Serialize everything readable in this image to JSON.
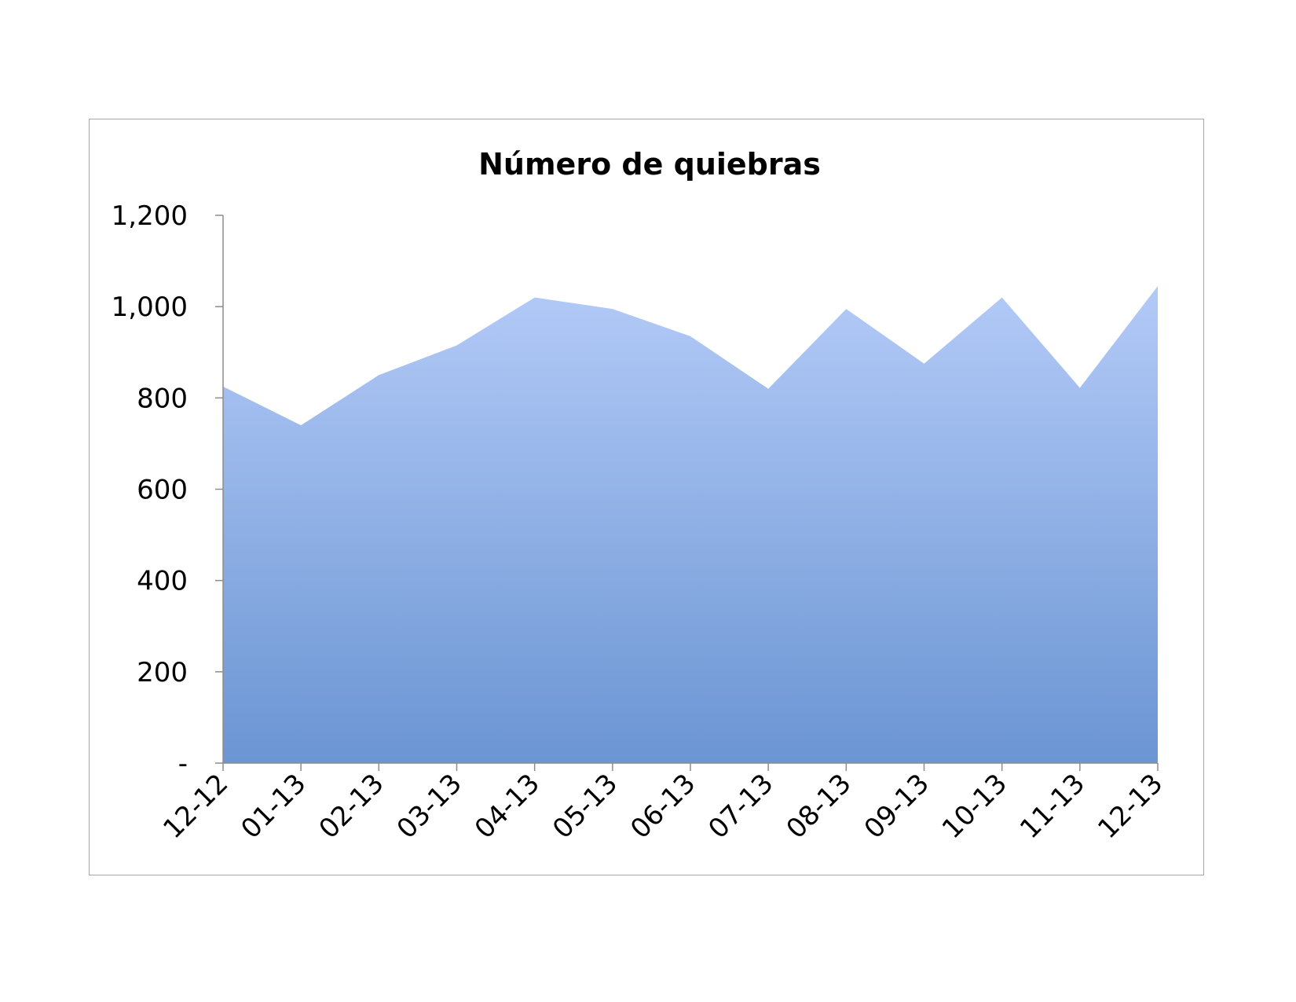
{
  "chart_data": {
    "type": "area",
    "title": "Número de quiebras",
    "xlabel": "",
    "ylabel": "",
    "categories": [
      "12-12",
      "01-13",
      "02-13",
      "03-13",
      "04-13",
      "05-13",
      "06-13",
      "07-13",
      "08-13",
      "09-13",
      "10-13",
      "11-13",
      "12-13"
    ],
    "series": [
      {
        "values": [
          825,
          740,
          850,
          915,
          1020,
          995,
          935,
          820,
          995,
          875,
          1020,
          822,
          1045
        ]
      }
    ],
    "ylim": [
      0,
      1200
    ],
    "yticks": [
      0,
      200,
      400,
      600,
      800,
      1000,
      1200
    ],
    "ytick_labels": [
      "-",
      "200",
      "400",
      "600",
      "800",
      "1,000",
      "1,200"
    ],
    "grid": false,
    "legend": "none",
    "colors": {
      "fill_top": "#b3caf7",
      "fill_bottom": "#6b95d3",
      "axis": "#8c8c8c"
    }
  }
}
